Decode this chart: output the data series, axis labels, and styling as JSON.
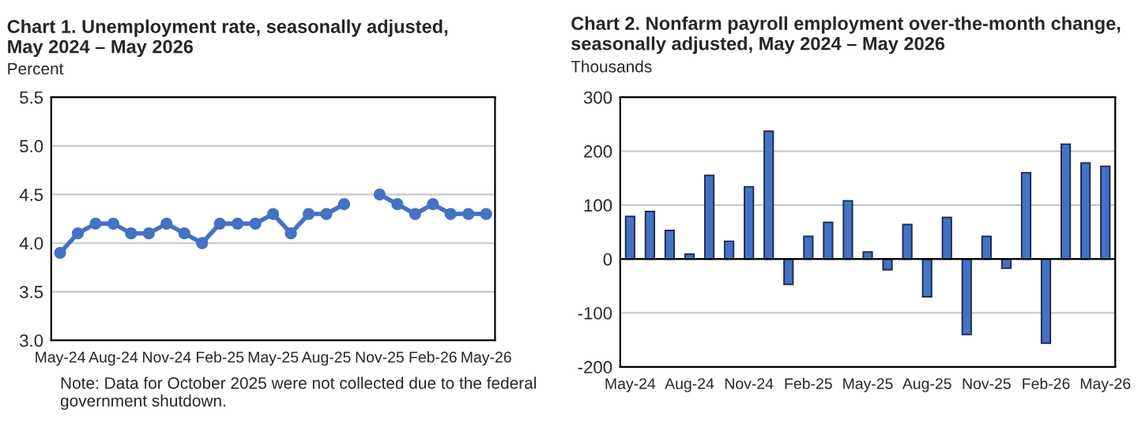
{
  "chart_data": [
    {
      "type": "line",
      "title": "Chart 1. Unemployment rate, seasonally adjusted,\nMay 2024 – May 2026",
      "ylabel": "Percent",
      "categories": [
        "May-24",
        null,
        null,
        "Aug-24",
        null,
        null,
        "Nov-24",
        null,
        null,
        "Feb-25",
        null,
        null,
        "May-25",
        null,
        null,
        "Aug-25",
        null,
        null,
        "Nov-25",
        null,
        null,
        "Feb-26",
        null,
        null,
        "May-26"
      ],
      "series": [
        {
          "color": "#4472c4",
          "values": [
            3.9,
            4.1,
            4.2,
            4.2,
            4.1,
            4.1,
            4.2,
            4.1,
            4.0,
            4.2,
            4.2,
            4.2,
            4.3,
            4.1,
            4.3,
            4.3,
            4.4,
            null,
            4.5,
            4.4,
            4.3,
            4.4,
            4.3,
            4.3,
            4.3
          ]
        }
      ],
      "ylim": [
        3.0,
        5.5
      ],
      "yticks": [
        {
          "value": 3.0,
          "label": "3.0"
        },
        {
          "value": 3.5,
          "label": "3.5"
        },
        {
          "value": 4.0,
          "label": "4.0"
        },
        {
          "value": 4.5,
          "label": "4.5"
        },
        {
          "value": 5.0,
          "label": "5.0"
        },
        {
          "value": 5.5,
          "label": "5.5"
        }
      ],
      "grid": "y",
      "marker": "circle",
      "line_style": "solid",
      "annotations": [
        "Note: Data for October 2025 were not collected due to the federal\ngovernment shutdown."
      ]
    },
    {
      "type": "bar",
      "title": "Chart 2. Nonfarm payroll employment over-the-month change,\nseasonally adjusted, May 2024 – May 2026",
      "ylabel": "Thousands",
      "categories": [
        "May-24",
        null,
        null,
        "Aug-24",
        null,
        null,
        "Nov-24",
        null,
        null,
        "Feb-25",
        null,
        null,
        "May-25",
        null,
        null,
        "Aug-25",
        null,
        null,
        "Nov-25",
        null,
        null,
        "Feb-26",
        null,
        null,
        "May-26"
      ],
      "series": [
        {
          "color": "#4472c4",
          "values": [
            79,
            88,
            53,
            9,
            155,
            33,
            134,
            237,
            -47,
            42,
            68,
            108,
            13,
            -20,
            64,
            -70,
            77,
            -140,
            42,
            -17,
            160,
            -156,
            213,
            178,
            172
          ]
        }
      ],
      "ylim": [
        -200,
        300
      ],
      "yticks": [
        -200,
        -100,
        0,
        100,
        200,
        300
      ],
      "grid": "y"
    }
  ]
}
